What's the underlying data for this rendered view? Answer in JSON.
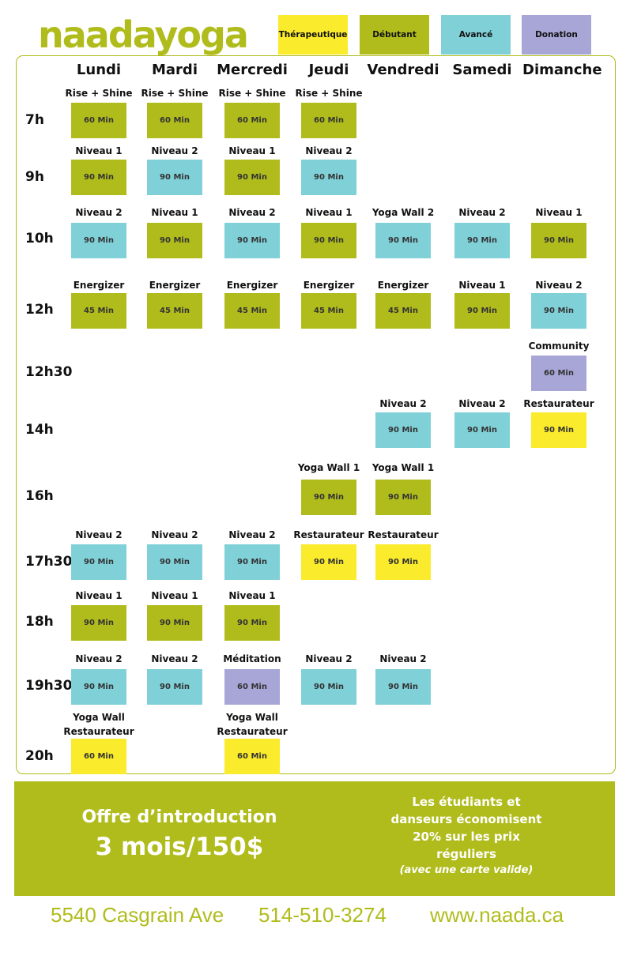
{
  "brand": {
    "logo": "naadayoga"
  },
  "colors": {
    "therapeutic": "#faeb2c",
    "beginner": "#b0bc1c",
    "advanced": "#80d0d8",
    "donation": "#a7a6d6"
  },
  "legend": [
    {
      "label": "Thérapeutique",
      "color": "therapeutic"
    },
    {
      "label": "Débutant",
      "color": "beginner"
    },
    {
      "label": "Avancé",
      "color": "advanced"
    },
    {
      "label": "Donation",
      "color": "donation"
    }
  ],
  "days": [
    "Lundi",
    "Mardi",
    "Mercredi",
    "Jeudi",
    "Vendredi",
    "Samedi",
    "Dimanche"
  ],
  "times": [
    "7h",
    "9h",
    "10h",
    "12h",
    "12h30",
    "14h",
    "16h",
    "17h30",
    "18h",
    "19h30",
    "20h"
  ],
  "classes": [
    {
      "day": 0,
      "slot": 0,
      "name": "Rise + Shine",
      "duration": "60 Min",
      "level": "beginner"
    },
    {
      "day": 1,
      "slot": 0,
      "name": "Rise + Shine",
      "duration": "60 Min",
      "level": "beginner"
    },
    {
      "day": 2,
      "slot": 0,
      "name": "Rise + Shine",
      "duration": "60 Min",
      "level": "beginner"
    },
    {
      "day": 3,
      "slot": 0,
      "name": "Rise + Shine",
      "duration": "60 Min",
      "level": "beginner"
    },
    {
      "day": 0,
      "slot": 1,
      "name": "Niveau 1",
      "duration": "90 Min",
      "level": "beginner"
    },
    {
      "day": 1,
      "slot": 1,
      "name": "Niveau 2",
      "duration": "90 Min",
      "level": "advanced"
    },
    {
      "day": 2,
      "slot": 1,
      "name": "Niveau 1",
      "duration": "90 Min",
      "level": "beginner"
    },
    {
      "day": 3,
      "slot": 1,
      "name": "Niveau 2",
      "duration": "90 Min",
      "level": "advanced"
    },
    {
      "day": 0,
      "slot": 2,
      "name": "Niveau 2",
      "duration": "90 Min",
      "level": "advanced"
    },
    {
      "day": 1,
      "slot": 2,
      "name": "Niveau 1",
      "duration": "90 Min",
      "level": "beginner"
    },
    {
      "day": 2,
      "slot": 2,
      "name": "Niveau 2",
      "duration": "90 Min",
      "level": "advanced"
    },
    {
      "day": 3,
      "slot": 2,
      "name": "Niveau 1",
      "duration": "90 Min",
      "level": "beginner"
    },
    {
      "day": 4,
      "slot": 2,
      "name": "Yoga Wall 2",
      "duration": "90 Min",
      "level": "advanced"
    },
    {
      "day": 5,
      "slot": 2,
      "name": "Niveau 2",
      "duration": "90 Min",
      "level": "advanced"
    },
    {
      "day": 6,
      "slot": 2,
      "name": "Niveau 1",
      "duration": "90 Min",
      "level": "beginner"
    },
    {
      "day": 0,
      "slot": 3,
      "name": "Energizer",
      "duration": "45 Min",
      "level": "beginner"
    },
    {
      "day": 1,
      "slot": 3,
      "name": "Energizer",
      "duration": "45 Min",
      "level": "beginner"
    },
    {
      "day": 2,
      "slot": 3,
      "name": "Energizer",
      "duration": "45 Min",
      "level": "beginner"
    },
    {
      "day": 3,
      "slot": 3,
      "name": "Energizer",
      "duration": "45 Min",
      "level": "beginner"
    },
    {
      "day": 4,
      "slot": 3,
      "name": "Energizer",
      "duration": "45 Min",
      "level": "beginner"
    },
    {
      "day": 5,
      "slot": 3,
      "name": "Niveau 1",
      "duration": "90 Min",
      "level": "beginner"
    },
    {
      "day": 6,
      "slot": 3,
      "name": "Niveau 2",
      "duration": "90 Min",
      "level": "advanced"
    },
    {
      "day": 6,
      "slot": 4,
      "name": "Community",
      "duration": "60 Min",
      "level": "donation"
    },
    {
      "day": 4,
      "slot": 5,
      "name": "Niveau 2",
      "duration": "90 Min",
      "level": "advanced"
    },
    {
      "day": 5,
      "slot": 5,
      "name": "Niveau 2",
      "duration": "90 Min",
      "level": "advanced"
    },
    {
      "day": 6,
      "slot": 5,
      "name": "Restaurateur",
      "duration": "90 Min",
      "level": "therapeutic"
    },
    {
      "day": 3,
      "slot": 6,
      "name": "Yoga Wall 1",
      "duration": "90 Min",
      "level": "beginner"
    },
    {
      "day": 4,
      "slot": 6,
      "name": "Yoga Wall 1",
      "duration": "90 Min",
      "level": "beginner"
    },
    {
      "day": 0,
      "slot": 7,
      "name": "Niveau 2",
      "duration": "90 Min",
      "level": "advanced"
    },
    {
      "day": 1,
      "slot": 7,
      "name": "Niveau 2",
      "duration": "90 Min",
      "level": "advanced"
    },
    {
      "day": 2,
      "slot": 7,
      "name": "Niveau 2",
      "duration": "90 Min",
      "level": "advanced"
    },
    {
      "day": 3,
      "slot": 7,
      "name": "Restaurateur",
      "duration": "90 Min",
      "level": "therapeutic"
    },
    {
      "day": 4,
      "slot": 7,
      "name": "Restaurateur",
      "duration": "90 Min",
      "level": "therapeutic"
    },
    {
      "day": 0,
      "slot": 8,
      "name": "Niveau 1",
      "duration": "90 Min",
      "level": "beginner"
    },
    {
      "day": 1,
      "slot": 8,
      "name": "Niveau 1",
      "duration": "90 Min",
      "level": "beginner"
    },
    {
      "day": 2,
      "slot": 8,
      "name": "Niveau 1",
      "duration": "90 Min",
      "level": "beginner"
    },
    {
      "day": 0,
      "slot": 9,
      "name": "Niveau 2",
      "duration": "90 Min",
      "level": "advanced"
    },
    {
      "day": 1,
      "slot": 9,
      "name": "Niveau 2",
      "duration": "90 Min",
      "level": "advanced"
    },
    {
      "day": 2,
      "slot": 9,
      "name": "Méditation",
      "duration": "60 Min",
      "level": "donation"
    },
    {
      "day": 3,
      "slot": 9,
      "name": "Niveau 2",
      "duration": "90 Min",
      "level": "advanced"
    },
    {
      "day": 4,
      "slot": 9,
      "name": "Niveau 2",
      "duration": "90 Min",
      "level": "advanced"
    },
    {
      "day": 0,
      "slot": 10,
      "name": "Yoga Wall",
      "name2": "Restaurateur",
      "duration": "60 Min",
      "level": "therapeutic"
    },
    {
      "day": 2,
      "slot": 10,
      "name": "Yoga Wall",
      "name2": "Restaurateur",
      "duration": "60 Min",
      "level": "therapeutic"
    }
  ],
  "promo": {
    "title": "Offre d’introduction",
    "price": "3 mois/150$",
    "students_lines": [
      "Les étudiants et",
      "danseurs économisent",
      "20% sur les prix",
      "réguliers"
    ],
    "students_note": "(avec une carte valide)"
  },
  "footer": {
    "address": "5540 Casgrain Ave",
    "phone": "514-510-3274",
    "website": "www.naada.ca"
  }
}
